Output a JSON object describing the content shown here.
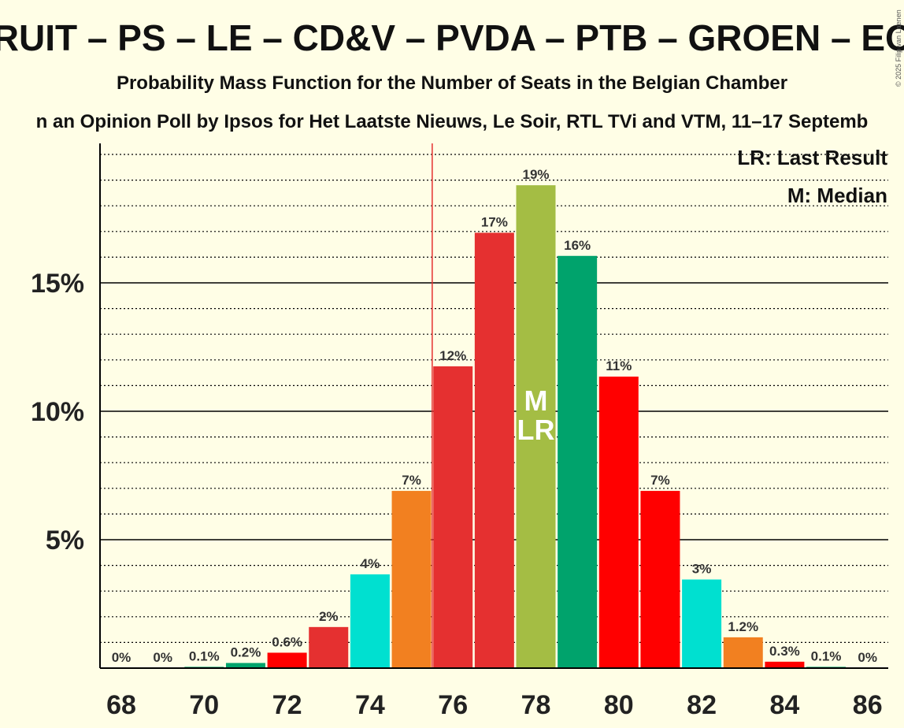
{
  "chart_data": {
    "type": "bar",
    "title": "ORUIT – PS – LE – CD&V – PVDA – PTB – GROEN – ECO",
    "subtitle": "Probability Mass Function for the Number of Seats in the Belgian Chamber",
    "subtitle2": "n an Opinion Poll by Ipsos for Het Laatste Nieuws, Le Soir, RTL TVi and VTM, 11–17 Septemb",
    "copyright": "© 2025 Filip van Laenen",
    "legend": {
      "last_result": "LR: Last Result",
      "median": "M: Median",
      "placement": "top-right"
    },
    "x": [
      68,
      69,
      70,
      71,
      72,
      73,
      74,
      75,
      76,
      77,
      78,
      79,
      80,
      81,
      82,
      83,
      84,
      85,
      86
    ],
    "values": [
      0,
      0,
      0.05,
      0.2,
      0.6,
      1.6,
      3.65,
      6.9,
      11.75,
      16.95,
      18.8,
      16.05,
      11.35,
      6.9,
      3.45,
      1.2,
      0.25,
      0.05,
      0
    ],
    "labels": [
      "0%",
      "0%",
      "0.1%",
      "0.2%",
      "0.6%",
      "2%",
      "4%",
      "7%",
      "12%",
      "17%",
      "19%",
      "16%",
      "11%",
      "7%",
      "3%",
      "1.2%",
      "0.3%",
      "0.1%",
      "0%"
    ],
    "colors": [
      "#e53030",
      "#e53030",
      "#00a36c",
      "#00a36c",
      "#ff0000",
      "#e53030",
      "#00e0d0",
      "#f28020",
      "#e53030",
      "#e53030",
      "#a4bd44",
      "#00a36c",
      "#ff0000",
      "#ff0000",
      "#00e0d0",
      "#f28020",
      "#ff0000",
      "#00a36c",
      "#ff0000"
    ],
    "x_tick_labels": [
      "68",
      "70",
      "72",
      "74",
      "76",
      "78",
      "80",
      "82",
      "84",
      "86"
    ],
    "y_tick_values": [
      5,
      10,
      15
    ],
    "y_tick_labels": [
      "5%",
      "10%",
      "15%"
    ],
    "ylim": [
      0,
      20.5
    ],
    "majority_line_x": 75.5,
    "median_seat": 78,
    "last_result_seat": 78,
    "median_marker": "M",
    "last_result_marker": "LR",
    "grid": true
  }
}
